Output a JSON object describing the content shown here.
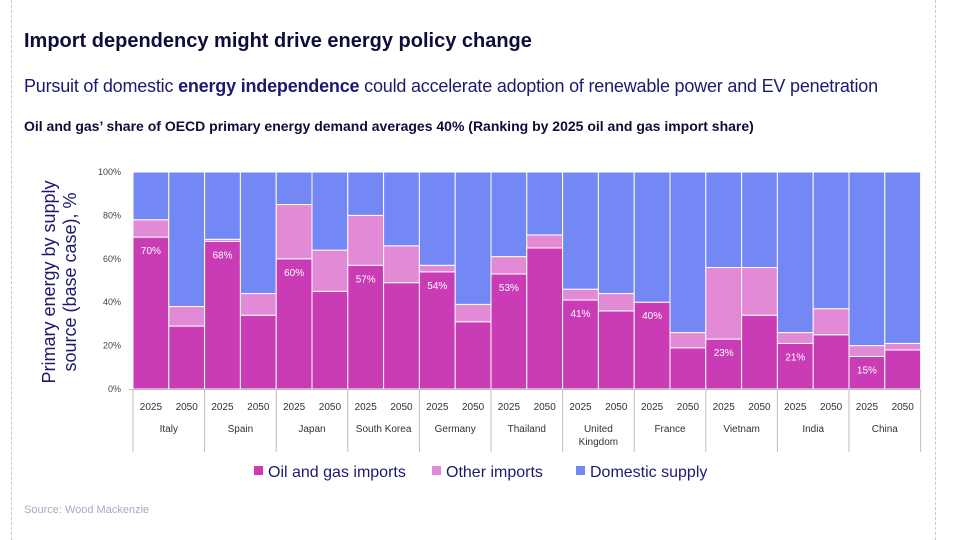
{
  "header": {
    "title": "Import dependency might drive energy policy change",
    "subtitle_pre": "Pursuit of domestic ",
    "subtitle_bold": "energy independence",
    "subtitle_post": " could accelerate adoption of renewable power and EV penetration",
    "chart_heading": "Oil and gas’ share of OECD primary energy demand averages 40% (Ranking by 2025 oil and gas import share)"
  },
  "footer": {
    "source": "Source: Wood Mackenzie"
  },
  "colors": {
    "oil_gas": "#c93cb5",
    "other": "#e28ad6",
    "domestic": "#7488f5",
    "text": "#1c1a6e"
  },
  "chart_data": {
    "type": "bar",
    "stacked": true,
    "ylabel": "Primary energy by supply source (base case), %",
    "ylim": [
      0,
      100
    ],
    "yticks": [
      "0%",
      "20%",
      "40%",
      "60%",
      "80%",
      "100%"
    ],
    "groups": [
      "Italy",
      "Spain",
      "Japan",
      "South Korea",
      "Germany",
      "Thailand",
      "United Kingdom",
      "France",
      "Vietnam",
      "India",
      "China"
    ],
    "years": [
      "2025",
      "2050"
    ],
    "series": [
      {
        "name": "Oil and gas imports",
        "values": [
          70,
          29,
          68,
          34,
          60,
          45,
          57,
          49,
          54,
          31,
          53,
          65,
          41,
          36,
          40,
          19,
          23,
          34,
          21,
          25,
          15,
          18
        ]
      },
      {
        "name": "Other imports",
        "values": [
          8,
          9,
          1,
          10,
          25,
          19,
          23,
          17,
          3,
          8,
          8,
          6,
          5,
          8,
          0,
          7,
          33,
          22,
          5,
          12,
          5,
          3
        ]
      },
      {
        "name": "Domestic supply",
        "values": [
          22,
          62,
          31,
          56,
          15,
          36,
          20,
          34,
          43,
          61,
          39,
          29,
          54,
          56,
          60,
          74,
          44,
          44,
          74,
          63,
          80,
          79
        ]
      }
    ],
    "data_labels": [
      "70%",
      "",
      "68%",
      "",
      "60%",
      "",
      "57%",
      "",
      "54%",
      "",
      "53%",
      "",
      "41%",
      "",
      "40%",
      "",
      "23%",
      "",
      "21%",
      "",
      "15%",
      ""
    ],
    "legend_position": "bottom",
    "grid": false
  }
}
